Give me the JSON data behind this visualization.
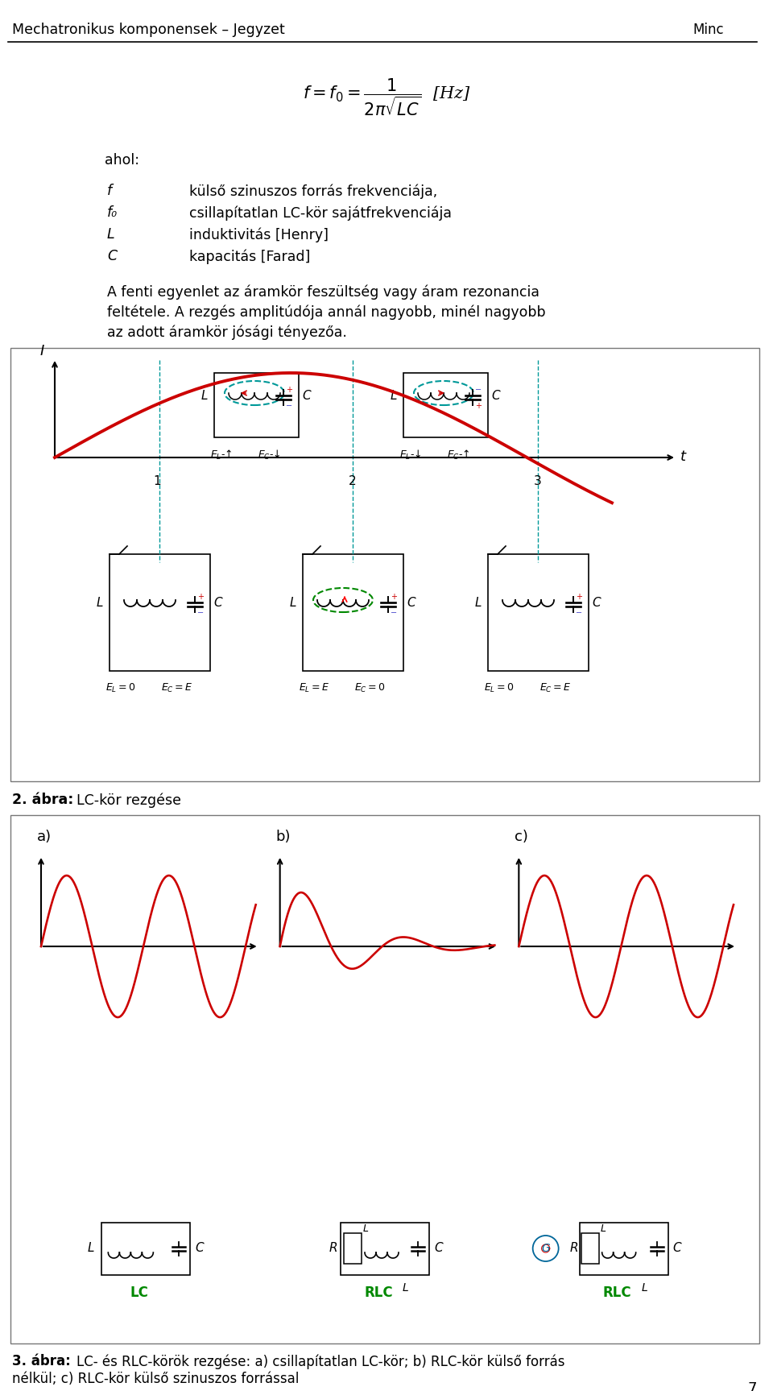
{
  "title_header": "Mechatronikus komponensek – Jegyzet",
  "ahol_text": "ahol:",
  "page_number": "7",
  "bg_color": "#ffffff",
  "text_color": "#000000",
  "red_color": "#cc0000",
  "green_color": "#008800",
  "dashed_teal": "#009999",
  "fig2_caption_bold": "2. ábra:",
  "fig2_caption_rest": " LC-kör rezgése",
  "fig3_caption_bold": "3. ábra:",
  "fig3_caption_rest": " LC- és RLC-körök rezgése: a) csillapítatlan LC-kör; b) RLC-kör külső forrás",
  "fig3_caption_line2": "nélkül; c) RLC-kör külső szinuszos forrással"
}
